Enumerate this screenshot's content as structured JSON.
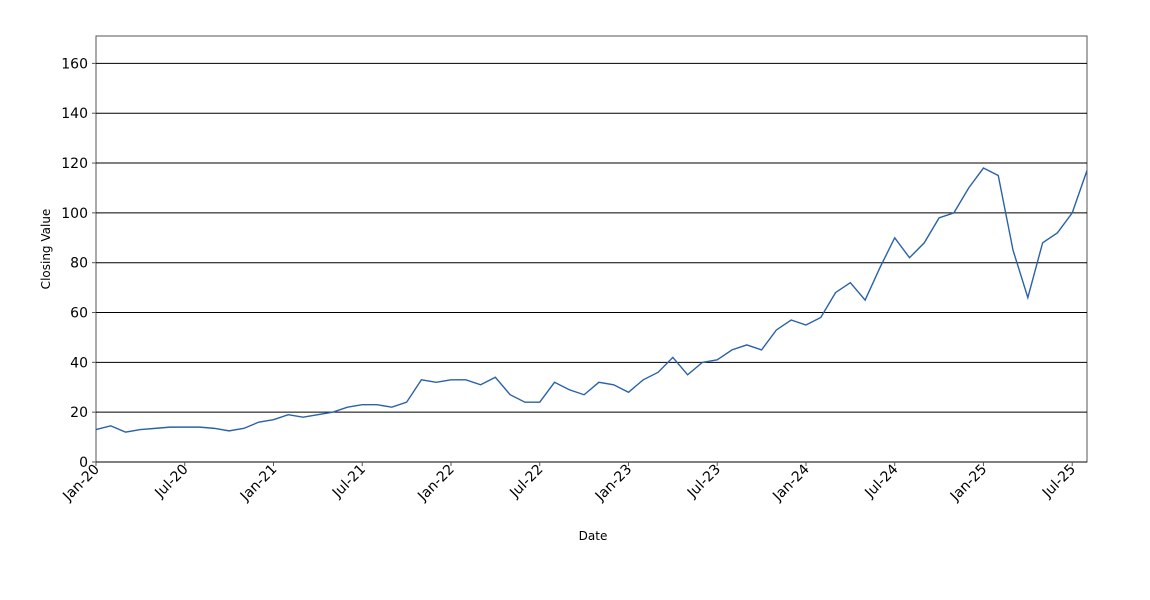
{
  "chart_data": {
    "type": "line",
    "x_label": "Date",
    "y_label": "Closing Value",
    "x": [
      "2020-01",
      "2020-02",
      "2020-03",
      "2020-04",
      "2020-05",
      "2020-06",
      "2020-07",
      "2020-08",
      "2020-09",
      "2020-10",
      "2020-11",
      "2020-12",
      "2021-01",
      "2021-02",
      "2021-03",
      "2021-04",
      "2021-05",
      "2021-06",
      "2021-07",
      "2021-08",
      "2021-09",
      "2021-10",
      "2021-11",
      "2021-12",
      "2022-01",
      "2022-02",
      "2022-03",
      "2022-04",
      "2022-05",
      "2022-06",
      "2022-07",
      "2022-08",
      "2022-09",
      "2022-10",
      "2022-11",
      "2022-12",
      "2023-01",
      "2023-02",
      "2023-03",
      "2023-04",
      "2023-05",
      "2023-06",
      "2023-07",
      "2023-08",
      "2023-09",
      "2023-10",
      "2023-11",
      "2023-12",
      "2024-01",
      "2024-02",
      "2024-03",
      "2024-04",
      "2024-05",
      "2024-06",
      "2024-07",
      "2024-08",
      "2024-09",
      "2024-10",
      "2024-11",
      "2024-12",
      "2025-01",
      "2025-02",
      "2025-03",
      "2025-04",
      "2025-05",
      "2025-06",
      "2025-07",
      "2025-08"
    ],
    "series": [
      {
        "name": "Closing Value",
        "color": "#2a62a8",
        "values": [
          13,
          14.5,
          12,
          13,
          13.5,
          14,
          14,
          14,
          13.5,
          12.5,
          13.5,
          16,
          17,
          19,
          18,
          19,
          20,
          22,
          23,
          23,
          22,
          24,
          33,
          32,
          33,
          33,
          31,
          34,
          27,
          24,
          24,
          32,
          29,
          27,
          32,
          31,
          28,
          33,
          36,
          42,
          35,
          40,
          41,
          45,
          47,
          45,
          53,
          57,
          55,
          58,
          68,
          72,
          65,
          78,
          90,
          82,
          88,
          98,
          100,
          110,
          118,
          115,
          85,
          66,
          88,
          92,
          100,
          117
        ]
      }
    ],
    "xlim": [
      "2020-01",
      "2025-08"
    ],
    "xticks": [
      {
        "value": "2020-01",
        "label": "Jan-20"
      },
      {
        "value": "2020-07",
        "label": "Jul-20"
      },
      {
        "value": "2021-01",
        "label": "Jan-21"
      },
      {
        "value": "2021-07",
        "label": "Jul-21"
      },
      {
        "value": "2022-01",
        "label": "Jan-22"
      },
      {
        "value": "2022-07",
        "label": "Jul-22"
      },
      {
        "value": "2023-01",
        "label": "Jan-23"
      },
      {
        "value": "2023-07",
        "label": "Jul-23"
      },
      {
        "value": "2024-01",
        "label": "Jan-24"
      },
      {
        "value": "2024-07",
        "label": "Jul-24"
      },
      {
        "value": "2025-01",
        "label": "Jan-25"
      },
      {
        "value": "2025-07",
        "label": "Jul-25"
      }
    ],
    "ylim": [
      0,
      171
    ],
    "yticks": [
      0,
      20,
      40,
      60,
      80,
      100,
      120,
      140,
      160
    ],
    "grid": true
  }
}
